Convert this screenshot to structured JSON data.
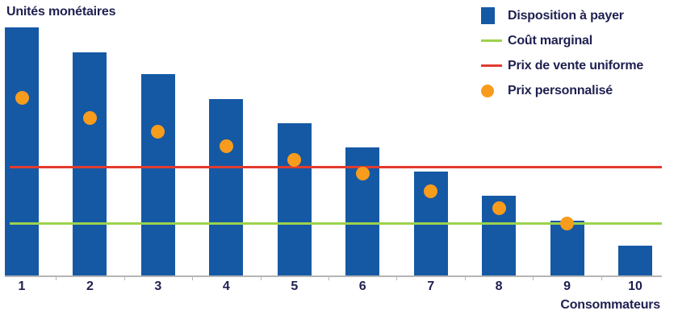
{
  "chart_data": {
    "type": "bar",
    "title": "Unités monétaires",
    "xlabel": "Consommateurs",
    "categories": [
      "1",
      "2",
      "3",
      "4",
      "5",
      "6",
      "7",
      "8",
      "9",
      "10"
    ],
    "ylim": [
      0,
      11.1
    ],
    "grid": false,
    "legend_position": "top-right",
    "axis_color": "#b5b5b5",
    "text_color": "#1f2050",
    "series": [
      {
        "key": "disposition-a-payer",
        "name": "Disposition à payer",
        "type": "bar",
        "color": "#1559a5",
        "values": [
          10,
          9,
          8.1,
          7.1,
          6.15,
          5.15,
          4.2,
          3.2,
          2.2,
          1.2
        ]
      },
      {
        "key": "cout-marginal",
        "name": "Coût marginal",
        "type": "hline",
        "color": "#9cd24d",
        "value": 2.1
      },
      {
        "key": "prix-de-vente-uniforme",
        "name": "Prix de vente uniforme",
        "type": "hline",
        "color": "#e23b2e",
        "value": 4.35
      },
      {
        "key": "prix-personnalise",
        "name": "Prix personnalisé",
        "type": "points",
        "color": "#f89c1d",
        "values": [
          7.15,
          6.35,
          5.8,
          5.2,
          4.65,
          4.1,
          3.4,
          2.7,
          2.1,
          null
        ]
      }
    ]
  }
}
